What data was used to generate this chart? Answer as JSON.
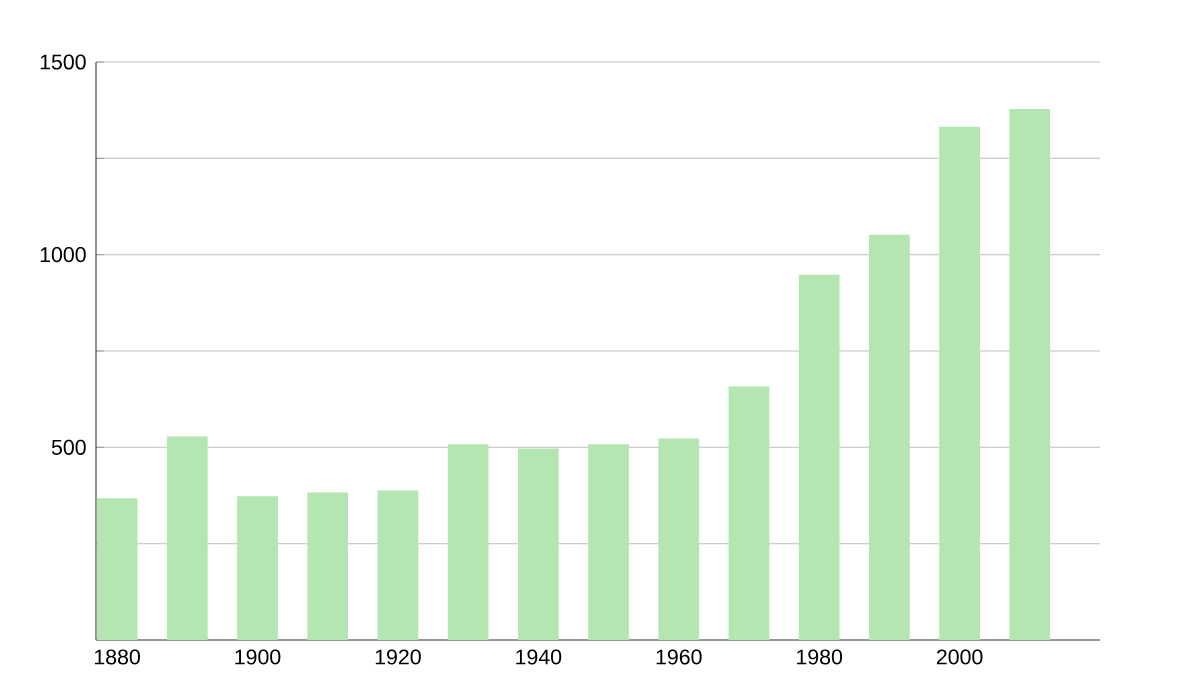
{
  "chart_data": {
    "type": "bar",
    "x": [
      1880,
      1890,
      1900,
      1910,
      1920,
      1930,
      1940,
      1950,
      1960,
      1970,
      1980,
      1990,
      2000,
      2010
    ],
    "values": [
      368,
      528,
      373,
      383,
      388,
      508,
      497,
      508,
      523,
      658,
      948,
      1052,
      1332,
      1378
    ],
    "color": "#b3e6b0",
    "xlim": [
      1877,
      2020
    ],
    "xticks": [
      1880,
      1900,
      1920,
      1940,
      1960,
      1980,
      2000
    ],
    "ylim": [
      0,
      1500
    ],
    "yticks": [
      {
        "value": 250,
        "label": null
      },
      500,
      {
        "value": 750,
        "label": null
      },
      1000,
      {
        "value": 1250,
        "label": null
      },
      1500
    ],
    "grid": "y"
  }
}
